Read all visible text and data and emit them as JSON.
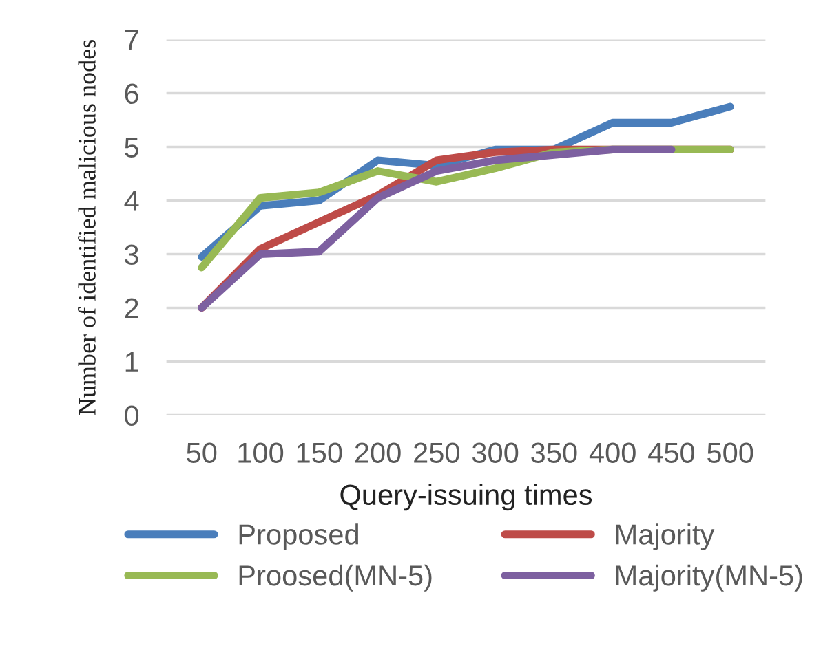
{
  "chart_data": {
    "type": "line",
    "xlabel": "Query-issuing times",
    "ylabel": "Number of identified malicious nodes",
    "categories": [
      "50",
      "100",
      "150",
      "200",
      "250",
      "300",
      "350",
      "400",
      "450",
      "500"
    ],
    "series": [
      {
        "name": "Proposed",
        "color": "#4a7ebb",
        "values": [
          2.95,
          3.9,
          4.0,
          4.75,
          4.65,
          4.95,
          4.95,
          5.45,
          5.45,
          5.75
        ]
      },
      {
        "name": "Majority",
        "color": "#be4b48",
        "values": [
          2.0,
          3.1,
          3.6,
          4.1,
          4.75,
          4.9,
          4.95,
          4.95,
          4.95,
          4.95
        ]
      },
      {
        "name": "Proosed(MN-5)",
        "color": "#98b954",
        "values": [
          2.75,
          4.05,
          4.15,
          4.55,
          4.35,
          4.6,
          4.9,
          4.95,
          4.95,
          4.95
        ]
      },
      {
        "name": "Majority(MN-5)",
        "color": "#7d60a0",
        "values": [
          2.0,
          3.0,
          3.05,
          4.05,
          4.55,
          4.75,
          4.85,
          4.95,
          4.95,
          null
        ]
      }
    ],
    "ylim": [
      0,
      7
    ],
    "yticks": [
      0,
      1,
      2,
      3,
      4,
      5,
      6,
      7
    ],
    "grid": "y",
    "legend": "bottom"
  }
}
